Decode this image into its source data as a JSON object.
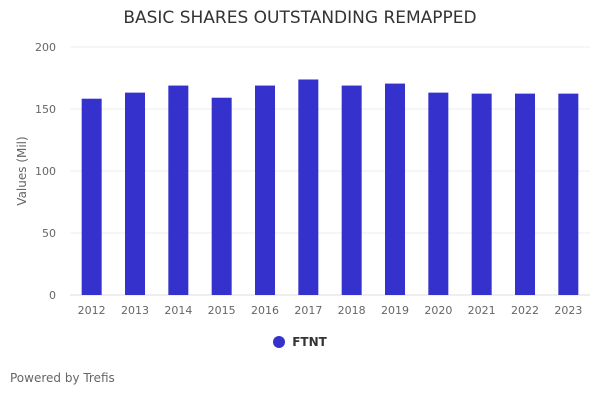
{
  "chart_data": {
    "type": "bar",
    "title": "BASIC SHARES OUTSTANDING REMAPPED",
    "xlabel": "",
    "ylabel": "Values (Mil)",
    "ylim": [
      0,
      200
    ],
    "yticks": [
      0,
      50,
      100,
      150,
      200
    ],
    "grid": true,
    "categories": [
      "2012",
      "2013",
      "2014",
      "2015",
      "2016",
      "2017",
      "2018",
      "2019",
      "2020",
      "2021",
      "2022",
      "2023"
    ],
    "series": [
      {
        "name": "FTNT",
        "color": "#3431CC",
        "values": [
          158.3,
          163.2,
          168.9,
          159.1,
          168.9,
          173.8,
          168.9,
          170.5,
          163.2,
          162.4,
          162.4,
          162.4
        ]
      }
    ],
    "legend_position": "bottom"
  },
  "footer": {
    "credit": "Powered by Trefis"
  }
}
